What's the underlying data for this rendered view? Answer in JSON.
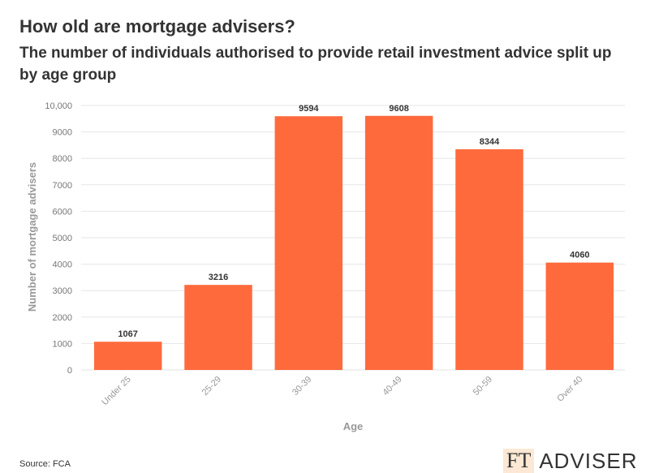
{
  "title": "How old are mortgage advisers?",
  "subtitle": "The number of individuals authorised to provide retail investment advice split up by age group",
  "source": "Source: FCA",
  "logo": {
    "mark": "FT",
    "text": "ADVISER"
  },
  "colors": {
    "bar": "#ff6a3d",
    "grid": "#e6e6e6",
    "axis_text": "#999999"
  },
  "chart_data": {
    "type": "bar",
    "categories": [
      "Under 25",
      "25-29",
      "30-39",
      "40-49",
      "50-59",
      "Over 40"
    ],
    "values": [
      1067,
      3216,
      9594,
      9608,
      8344,
      4060
    ],
    "title": "How old are mortgage advisers?",
    "subtitle": "The number of individuals authorised to provide retail investment advice split up by age group",
    "xlabel": "Age",
    "ylabel": "Number of mortgage advisers",
    "ylim": [
      0,
      10000
    ],
    "yticks": [
      0,
      1000,
      2000,
      3000,
      4000,
      5000,
      6000,
      7000,
      8000,
      9000,
      10000
    ],
    "ytick_labels": [
      "0",
      "1000",
      "2000",
      "3000",
      "4000",
      "5000",
      "6000",
      "7000",
      "8000",
      "9000",
      "10,000"
    ],
    "grid": true,
    "data_labels": true
  }
}
